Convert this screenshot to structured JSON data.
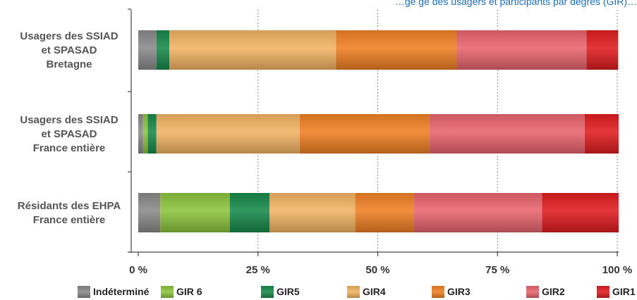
{
  "chart_data": {
    "type": "bar",
    "orientation": "horizontal",
    "stacked": true,
    "title": "…ge                    ge des usagers et participants par degrés (GIR)…",
    "xlabel": "",
    "ylabel": "",
    "xlim": [
      0,
      100
    ],
    "x_ticks": [
      "0 %",
      "25 %",
      "50 %",
      "75 %",
      "100 %"
    ],
    "categories": [
      [
        "Usagers des SSIAD",
        "et SPASAD",
        "Bretagne"
      ],
      [
        "Usagers des SSIAD",
        "et SPASAD",
        "France entière"
      ],
      [
        "Résidants des EHPA",
        "France entière"
      ]
    ],
    "series": [
      {
        "name": "Indéterminé",
        "color": "#8a8a8a",
        "values": [
          3.8,
          1.0,
          4.6
        ]
      },
      {
        "name": "GIR 6",
        "color": "#8cc43d",
        "values": [
          0.0,
          1.0,
          14.5
        ]
      },
      {
        "name": "GIR5",
        "color": "#17894a",
        "values": [
          2.7,
          1.8,
          8.3
        ]
      },
      {
        "name": "GIR4",
        "color": "#f2b463",
        "values": [
          34.8,
          29.9,
          17.9
        ]
      },
      {
        "name": "GIR3",
        "color": "#ef8023",
        "values": [
          25.2,
          27.0,
          12.2
        ]
      },
      {
        "name": "GIR2",
        "color": "#e9646e",
        "values": [
          27.1,
          32.5,
          26.8
        ]
      },
      {
        "name": "GIR1",
        "color": "#e01c1f",
        "values": [
          6.6,
          7.1,
          16.0
        ]
      }
    ],
    "grid": "vertical dotted",
    "legend_position": "bottom"
  }
}
